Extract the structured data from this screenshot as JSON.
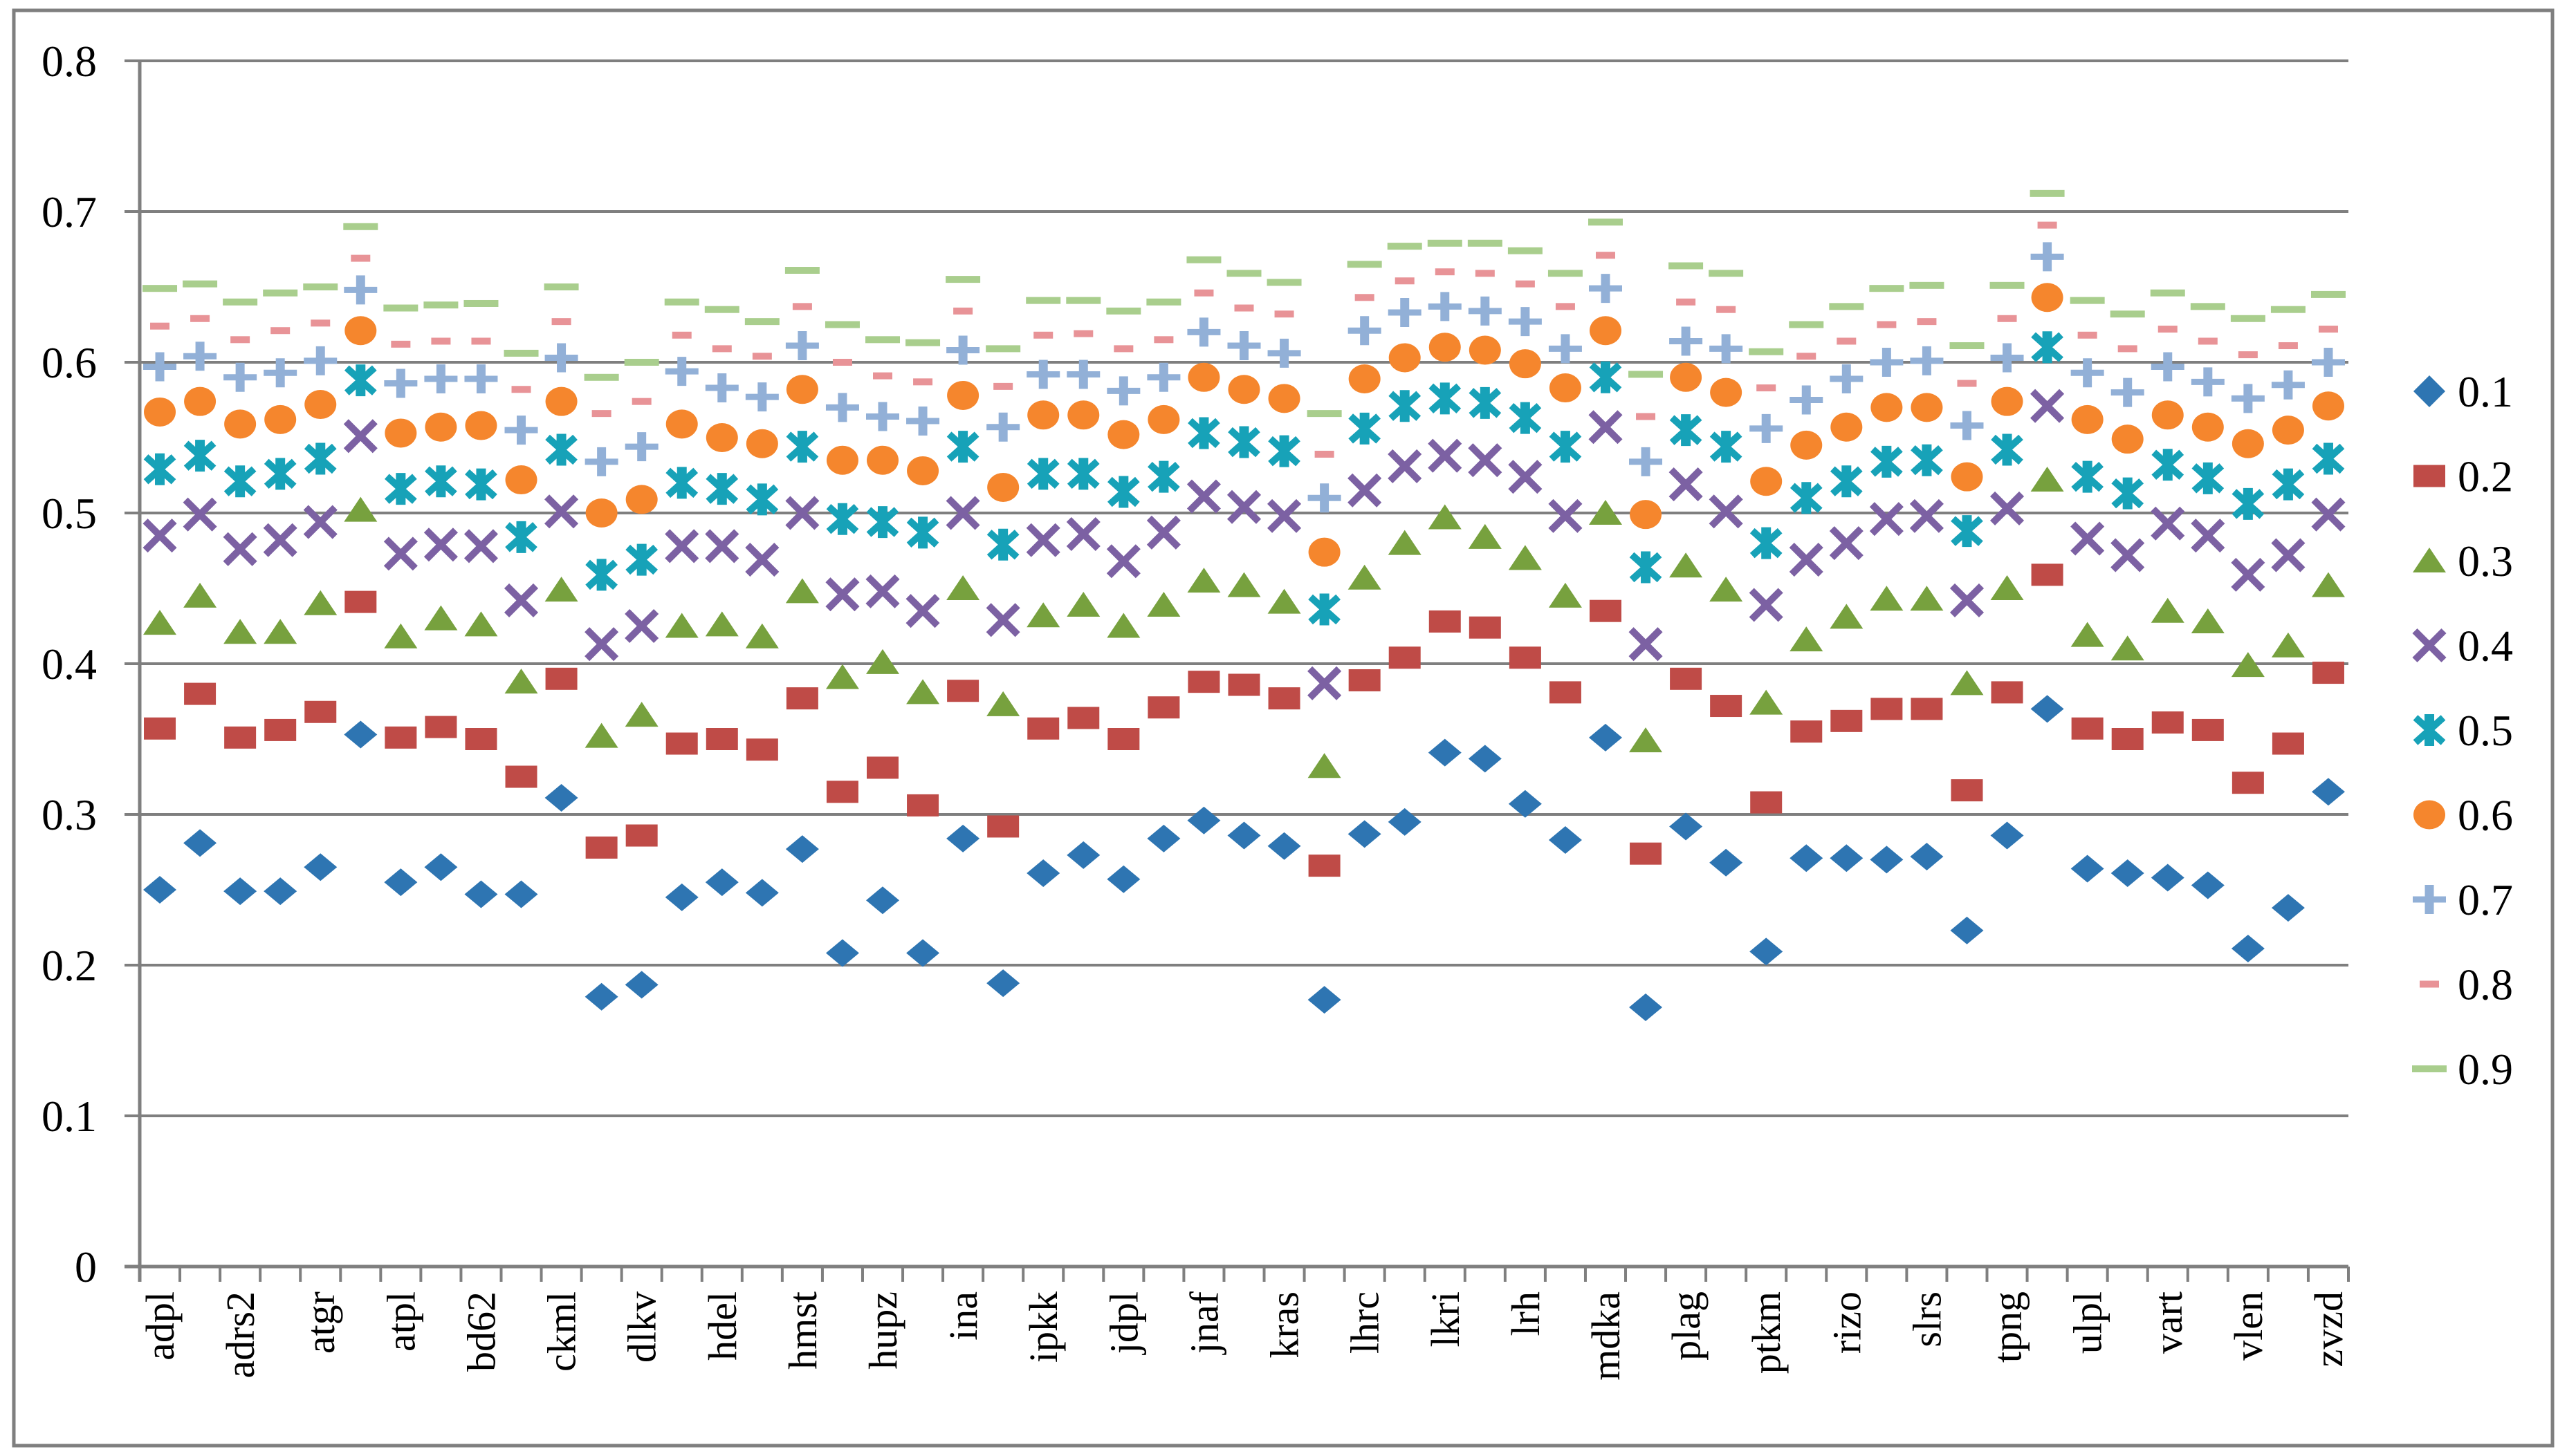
{
  "figure": {
    "background": "#ffffff",
    "border_color": "#7f7f7f",
    "gridline_color": "#7f7f7f",
    "text_color": "#000000"
  },
  "chart_data": {
    "type": "scatter",
    "title": "",
    "xlabel": "",
    "ylabel": "",
    "ylim": [
      0,
      0.8
    ],
    "y_tick_labels": [
      "0",
      "0.1",
      "0.2",
      "0.3",
      "0.4",
      "0.5",
      "0.6",
      "0.7",
      "0.8"
    ],
    "grid": true,
    "legend_position": "right",
    "x_count": 55,
    "points_per_label": 2,
    "categories": [
      "adpl",
      "adrs2",
      "atgr",
      "atpl",
      "bd62",
      "ckml",
      "dlkv",
      "hdel",
      "hmst",
      "hupz",
      "ina",
      "ipkk",
      "jdpl",
      "jnaf",
      "kras",
      "lhrc",
      "lkri",
      "lrh",
      "mdka",
      "plag",
      "ptkm",
      "rizo",
      "slrs",
      "tpng",
      "ulpl",
      "vart",
      "vlen",
      "zvzd"
    ],
    "series": [
      {
        "name": "0.1",
        "marker": "diamond",
        "color": "#2E75B2",
        "values": [
          0.25,
          0.281,
          0.249,
          0.249,
          0.265,
          0.353,
          0.255,
          0.265,
          0.247,
          0.247,
          0.311,
          0.179,
          0.187,
          0.245,
          0.255,
          0.248,
          0.277,
          0.208,
          0.243,
          0.208,
          0.284,
          0.188,
          0.261,
          0.273,
          0.257,
          0.284,
          0.296,
          0.286,
          0.279,
          0.177,
          0.287,
          0.295,
          0.341,
          0.337,
          0.307,
          0.283,
          0.351,
          0.172,
          0.292,
          0.268,
          0.209,
          0.271,
          0.271,
          0.27,
          0.272,
          0.223,
          0.286,
          0.37,
          0.264,
          0.261,
          0.258,
          0.253,
          0.211,
          0.238,
          0.315
        ]
      },
      {
        "name": "0.2",
        "marker": "square",
        "color": "#BF4B47",
        "values": [
          0.357,
          0.38,
          0.351,
          0.356,
          0.368,
          0.441,
          0.351,
          0.358,
          0.35,
          0.325,
          0.39,
          0.278,
          0.286,
          0.347,
          0.35,
          0.343,
          0.377,
          0.315,
          0.331,
          0.306,
          0.382,
          0.292,
          0.357,
          0.364,
          0.35,
          0.371,
          0.388,
          0.386,
          0.377,
          0.266,
          0.389,
          0.404,
          0.428,
          0.424,
          0.404,
          0.381,
          0.435,
          0.274,
          0.39,
          0.372,
          0.308,
          0.355,
          0.362,
          0.37,
          0.37,
          0.316,
          0.381,
          0.459,
          0.357,
          0.35,
          0.361,
          0.356,
          0.321,
          0.347,
          0.394
        ]
      },
      {
        "name": "0.3",
        "marker": "triangle",
        "color": "#77A13E",
        "values": [
          0.427,
          0.445,
          0.421,
          0.421,
          0.44,
          0.502,
          0.418,
          0.43,
          0.426,
          0.388,
          0.449,
          0.352,
          0.366,
          0.425,
          0.426,
          0.418,
          0.448,
          0.391,
          0.401,
          0.381,
          0.45,
          0.373,
          0.432,
          0.439,
          0.425,
          0.439,
          0.455,
          0.452,
          0.441,
          0.332,
          0.457,
          0.48,
          0.497,
          0.484,
          0.47,
          0.445,
          0.5,
          0.349,
          0.465,
          0.449,
          0.374,
          0.416,
          0.431,
          0.443,
          0.443,
          0.387,
          0.45,
          0.522,
          0.419,
          0.41,
          0.435,
          0.428,
          0.399,
          0.412,
          0.452
        ]
      },
      {
        "name": "0.4",
        "marker": "xmark",
        "color": "#7C61A3",
        "values": [
          0.485,
          0.499,
          0.476,
          0.482,
          0.494,
          0.551,
          0.473,
          0.479,
          0.478,
          0.442,
          0.501,
          0.413,
          0.425,
          0.478,
          0.478,
          0.469,
          0.5,
          0.446,
          0.448,
          0.435,
          0.5,
          0.429,
          0.482,
          0.486,
          0.468,
          0.487,
          0.511,
          0.504,
          0.498,
          0.387,
          0.515,
          0.531,
          0.538,
          0.535,
          0.524,
          0.498,
          0.557,
          0.413,
          0.519,
          0.501,
          0.439,
          0.469,
          0.48,
          0.496,
          0.498,
          0.442,
          0.503,
          0.571,
          0.483,
          0.472,
          0.493,
          0.485,
          0.459,
          0.472,
          0.499
        ]
      },
      {
        "name": "0.5",
        "marker": "asterisk",
        "color": "#17A2B8",
        "values": [
          0.529,
          0.538,
          0.521,
          0.526,
          0.536,
          0.588,
          0.516,
          0.521,
          0.519,
          0.484,
          0.542,
          0.459,
          0.469,
          0.52,
          0.516,
          0.509,
          0.544,
          0.496,
          0.494,
          0.487,
          0.544,
          0.479,
          0.526,
          0.526,
          0.514,
          0.524,
          0.553,
          0.547,
          0.541,
          0.436,
          0.556,
          0.571,
          0.576,
          0.573,
          0.563,
          0.544,
          0.59,
          0.464,
          0.555,
          0.544,
          0.48,
          0.51,
          0.521,
          0.534,
          0.535,
          0.488,
          0.542,
          0.61,
          0.524,
          0.513,
          0.532,
          0.523,
          0.506,
          0.519,
          0.536
        ]
      },
      {
        "name": "0.6",
        "marker": "circle",
        "color": "#F5862D",
        "values": [
          0.567,
          0.574,
          0.559,
          0.562,
          0.572,
          0.621,
          0.553,
          0.557,
          0.558,
          0.522,
          0.574,
          0.5,
          0.509,
          0.559,
          0.55,
          0.546,
          0.582,
          0.535,
          0.535,
          0.528,
          0.578,
          0.517,
          0.565,
          0.565,
          0.552,
          0.562,
          0.59,
          0.582,
          0.576,
          0.474,
          0.589,
          0.603,
          0.61,
          0.608,
          0.599,
          0.583,
          0.621,
          0.499,
          0.59,
          0.58,
          0.521,
          0.545,
          0.557,
          0.57,
          0.57,
          0.524,
          0.574,
          0.643,
          0.562,
          0.549,
          0.565,
          0.557,
          0.546,
          0.555,
          0.571
        ]
      },
      {
        "name": "0.7",
        "marker": "plus",
        "color": "#92B0D7",
        "values": [
          0.597,
          0.604,
          0.59,
          0.593,
          0.601,
          0.648,
          0.586,
          0.589,
          0.589,
          0.555,
          0.603,
          0.534,
          0.544,
          0.594,
          0.583,
          0.577,
          0.611,
          0.57,
          0.564,
          0.561,
          0.608,
          0.557,
          0.592,
          0.592,
          0.581,
          0.59,
          0.62,
          0.611,
          0.606,
          0.51,
          0.621,
          0.633,
          0.637,
          0.634,
          0.627,
          0.609,
          0.649,
          0.534,
          0.614,
          0.609,
          0.556,
          0.575,
          0.589,
          0.6,
          0.601,
          0.558,
          0.603,
          0.67,
          0.593,
          0.58,
          0.597,
          0.587,
          0.576,
          0.585,
          0.6
        ]
      },
      {
        "name": "0.8",
        "marker": "dash-short",
        "color": "#E89397",
        "values": [
          0.624,
          0.629,
          0.615,
          0.621,
          0.626,
          0.669,
          0.612,
          0.614,
          0.614,
          0.582,
          0.627,
          0.566,
          0.574,
          0.618,
          0.609,
          0.604,
          0.637,
          0.6,
          0.591,
          0.587,
          0.634,
          0.584,
          0.618,
          0.619,
          0.609,
          0.615,
          0.646,
          0.636,
          0.632,
          0.539,
          0.643,
          0.654,
          0.66,
          0.659,
          0.652,
          0.637,
          0.671,
          0.564,
          0.64,
          0.635,
          0.583,
          0.604,
          0.614,
          0.625,
          0.627,
          0.586,
          0.629,
          0.691,
          0.618,
          0.609,
          0.622,
          0.614,
          0.605,
          0.611,
          0.622
        ]
      },
      {
        "name": "0.9",
        "marker": "dash-long",
        "color": "#A9CE8D",
        "values": [
          0.649,
          0.652,
          0.64,
          0.646,
          0.65,
          0.69,
          0.636,
          0.638,
          0.639,
          0.606,
          0.65,
          0.59,
          0.6,
          0.64,
          0.635,
          0.627,
          0.661,
          0.625,
          0.615,
          0.613,
          0.655,
          0.609,
          0.641,
          0.641,
          0.634,
          0.64,
          0.668,
          0.659,
          0.653,
          0.566,
          0.665,
          0.677,
          0.679,
          0.679,
          0.674,
          0.659,
          0.693,
          0.592,
          0.664,
          0.659,
          0.607,
          0.625,
          0.637,
          0.649,
          0.651,
          0.611,
          0.651,
          0.712,
          0.641,
          0.632,
          0.646,
          0.637,
          0.629,
          0.635,
          0.645
        ]
      }
    ]
  }
}
